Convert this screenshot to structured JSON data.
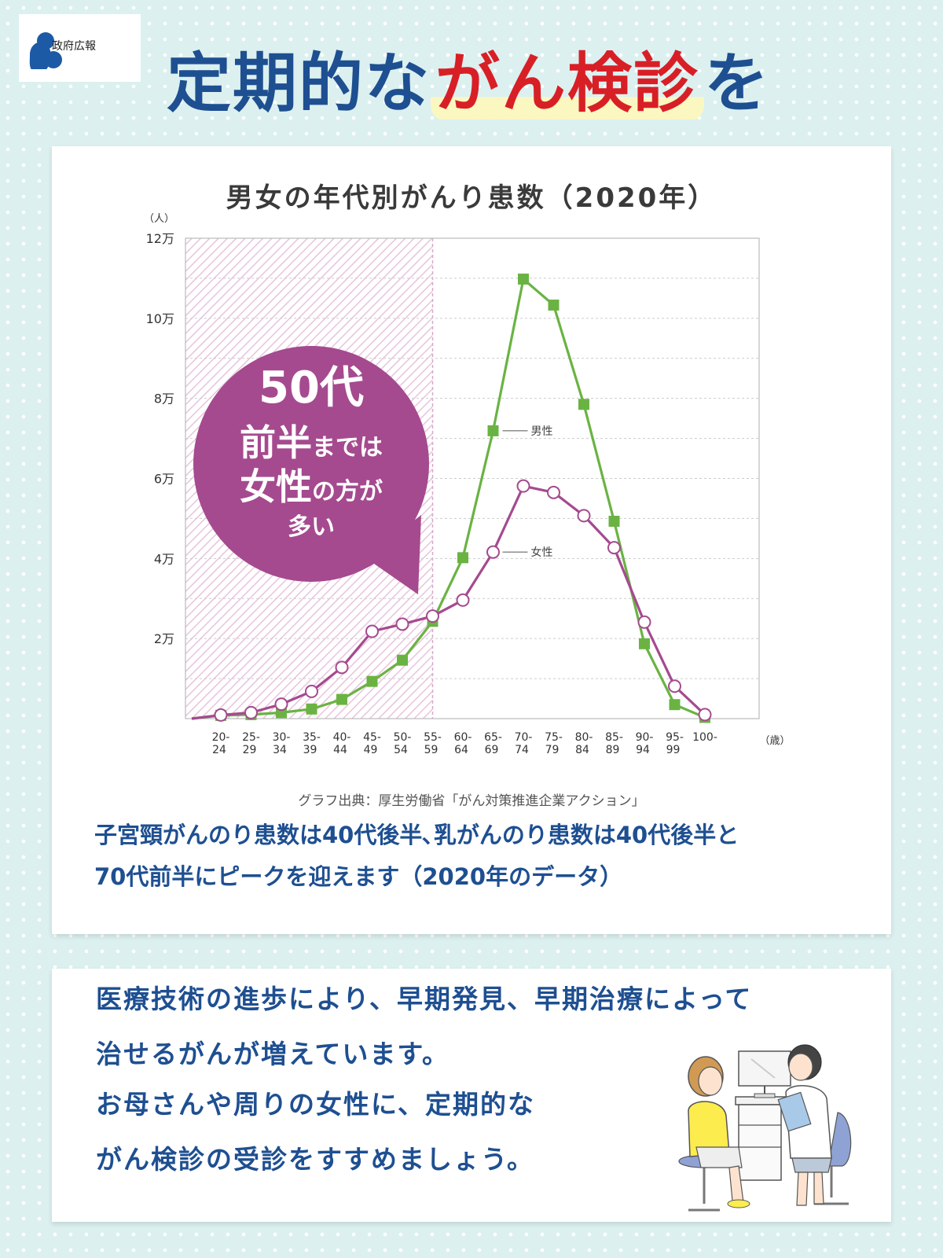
{
  "logo": {
    "text": "政府広報",
    "icon": "gov-pr-logo-icon"
  },
  "headline": {
    "part1": "定期的な",
    "highlight": "がん検診",
    "part2": "を"
  },
  "chart_data": {
    "type": "line",
    "title": "男女の年代別がんり患数（2020年）",
    "y_unit": "（人）",
    "x_unit": "（歳）",
    "ylim": [
      0,
      120000
    ],
    "y_ticks": [
      {
        "value": 20000,
        "label": "2万"
      },
      {
        "value": 40000,
        "label": "4万"
      },
      {
        "value": 60000,
        "label": "6万"
      },
      {
        "value": 80000,
        "label": "8万"
      },
      {
        "value": 100000,
        "label": "10万"
      },
      {
        "value": 120000,
        "label": "12万"
      }
    ],
    "categories": [
      [
        "20-",
        "24"
      ],
      [
        "25-",
        "29"
      ],
      [
        "30-",
        "34"
      ],
      [
        "35-",
        "39"
      ],
      [
        "40-",
        "44"
      ],
      [
        "45-",
        "49"
      ],
      [
        "50-",
        "54"
      ],
      [
        "55-",
        "59"
      ],
      [
        "60-",
        "64"
      ],
      [
        "65-",
        "69"
      ],
      [
        "70-",
        "74"
      ],
      [
        "75-",
        "79"
      ],
      [
        "80-",
        "84"
      ],
      [
        "85-",
        "89"
      ],
      [
        "90-",
        "94"
      ],
      [
        "95-",
        "99"
      ],
      [
        "100-",
        ""
      ]
    ],
    "series": [
      {
        "name": "男性",
        "color": "#6ab343",
        "marker": "square",
        "values": [
          800,
          1000,
          1500,
          2400,
          4800,
          9300,
          14600,
          24300,
          40200,
          71900,
          109800,
          103300,
          78500,
          49300,
          18700,
          3500,
          300
        ]
      },
      {
        "name": "女性",
        "color": "#a54a8f",
        "marker": "circle",
        "values": [
          900,
          1500,
          3600,
          6800,
          12800,
          21800,
          23600,
          25600,
          29600,
          41600,
          58100,
          56500,
          50700,
          42700,
          24100,
          8100,
          1000
        ]
      }
    ],
    "shaded_region": {
      "from": "20-24",
      "to": "50-54",
      "color": "#a54a8f"
    },
    "callout": {
      "line1": "50代",
      "line2a": "前半",
      "line2b": "までは",
      "line3a": "女性",
      "line3b": "の方が",
      "line4": "多い"
    },
    "grid": true
  },
  "source": "グラフ出典：厚生労働省「がん対策推進企業アクション」",
  "note": {
    "line1": "子宮頸がんのり患数は40代後半､乳がんのり患数は40代後半と",
    "line2": "70代前半にピークを迎えます（2020年のデータ）"
  },
  "message": {
    "line1": "医療技術の進歩により、早期発見、早期治療によって",
    "line2": "治せるがんが増えています。",
    "line3": "お母さんや周りの女性に、定期的な",
    "line4": "がん検診の受診をすすめましょう。"
  },
  "illustration": {
    "icon": "doctor-consultation-illustration"
  }
}
